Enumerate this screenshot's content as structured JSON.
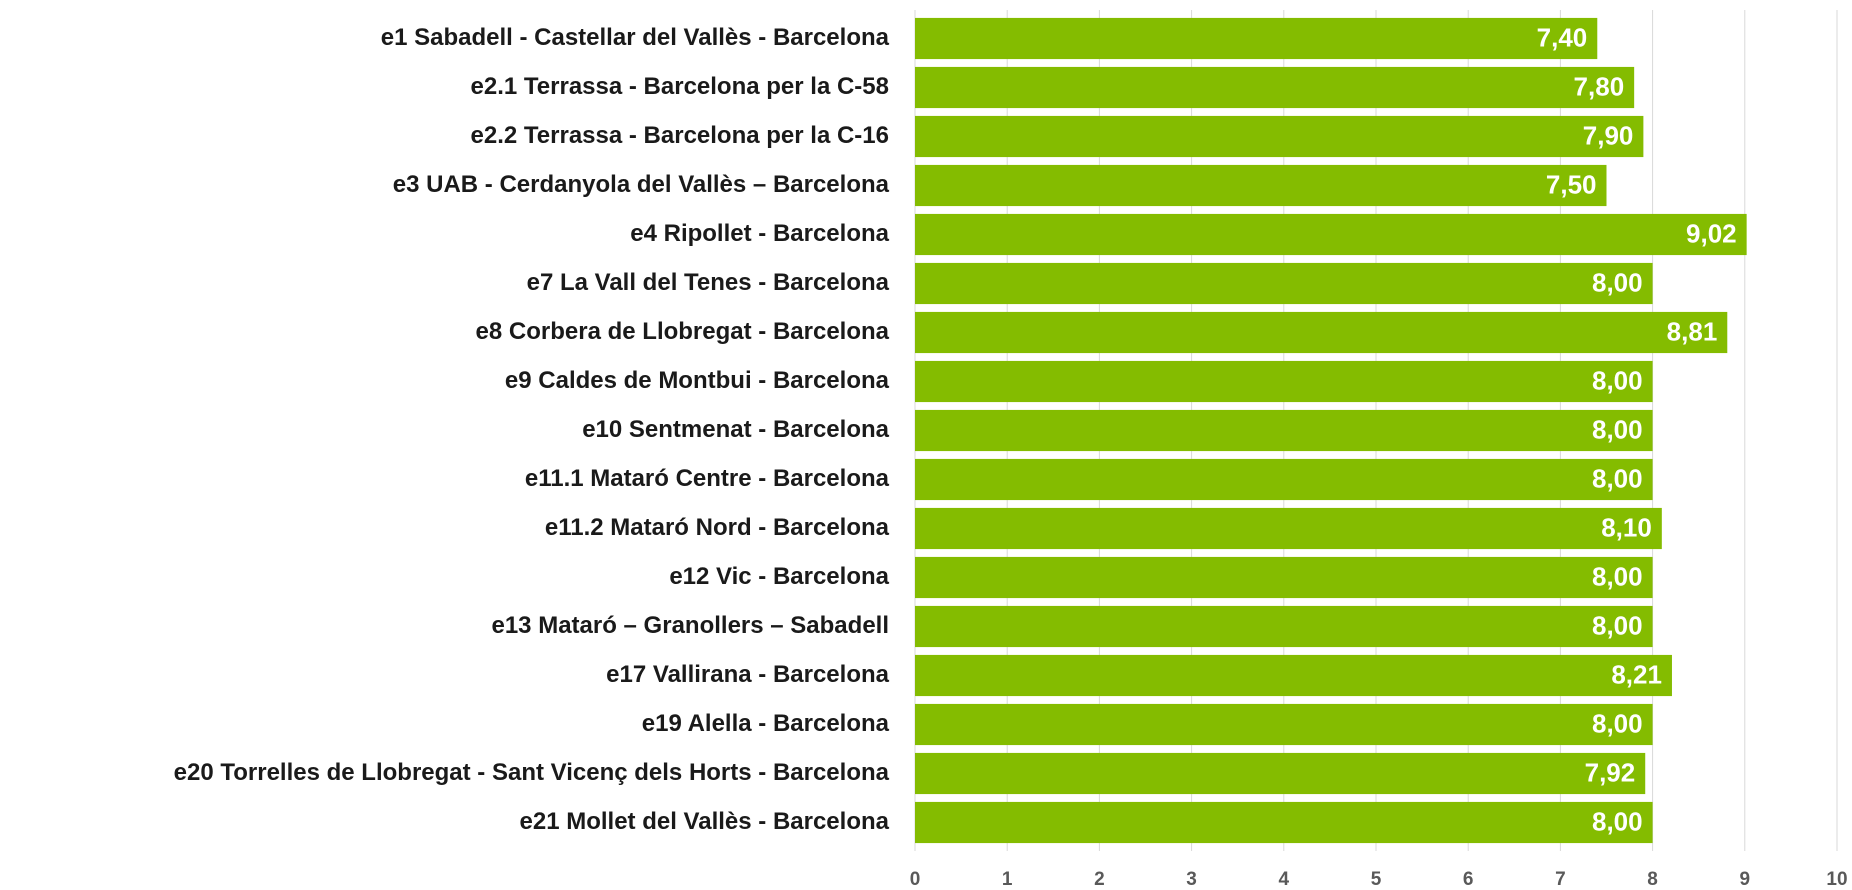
{
  "chart_data": {
    "type": "bar",
    "orientation": "horizontal",
    "categories": [
      "e1 Sabadell - Castellar del Vallès - Barcelona",
      "e2.1 Terrassa - Barcelona per la C-58",
      "e2.2 Terrassa - Barcelona per la C-16",
      "e3 UAB - Cerdanyola del Vallès – Barcelona",
      "e4 Ripollet - Barcelona",
      "e7 La Vall del Tenes - Barcelona",
      "e8 Corbera de Llobregat - Barcelona",
      "e9 Caldes de Montbui - Barcelona",
      "e10 Sentmenat - Barcelona",
      "e11.1 Mataró Centre - Barcelona",
      "e11.2 Mataró Nord - Barcelona",
      "e12 Vic - Barcelona",
      "e13 Mataró – Granollers – Sabadell",
      "e17 Vallirana - Barcelona",
      "e19 Alella - Barcelona",
      "e20 Torrelles de Llobregat - Sant Vicenç dels Horts - Barcelona",
      "e21 Mollet del Vallès - Barcelona"
    ],
    "values": [
      7.4,
      7.8,
      7.9,
      7.5,
      9.02,
      8,
      8.81,
      8,
      8,
      8,
      8.1,
      8,
      8,
      8.21,
      8,
      7.92,
      8
    ],
    "value_labels": [
      "7,40",
      "7,80",
      "7,90",
      "7,50",
      "9,02",
      "8,00",
      "8,81",
      "8,00",
      "8,00",
      "8,00",
      "8,10",
      "8,00",
      "8,00",
      "8,21",
      "8,00",
      "7,92",
      "8,00"
    ],
    "color": "#84bc00",
    "xlim": [
      0,
      10
    ],
    "xticks": [
      0,
      1,
      2,
      3,
      4,
      5,
      6,
      7,
      8,
      9,
      10
    ],
    "grid": true
  }
}
